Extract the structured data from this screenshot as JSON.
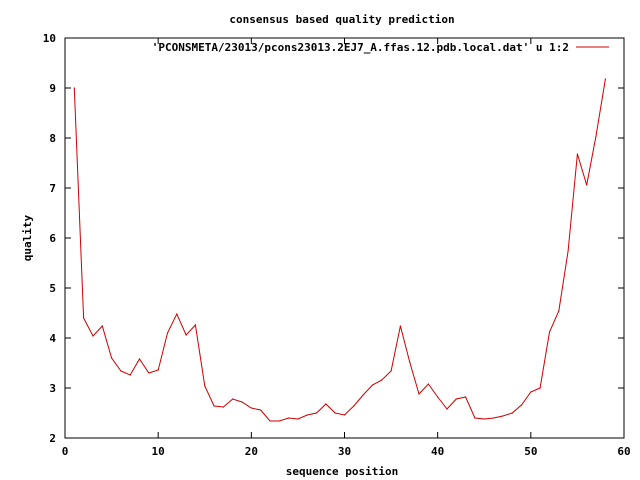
{
  "chart_data": {
    "type": "line",
    "title": "consensus based quality prediction",
    "xlabel": "sequence position",
    "ylabel": "quality",
    "xlim": [
      0,
      60
    ],
    "ylim": [
      2,
      10
    ],
    "xticks": [
      0,
      10,
      20,
      30,
      40,
      50,
      60
    ],
    "yticks": [
      2,
      3,
      4,
      5,
      6,
      7,
      8,
      9,
      10
    ],
    "grid": false,
    "legend_position": "top-right",
    "series": [
      {
        "name": "'PCONSMETA/23013/pcons23013.2EJ7_A.ffas.12.pdb.local.dat' u 1:2",
        "color": "#cc0000",
        "x": [
          1,
          2,
          3,
          4,
          5,
          6,
          7,
          8,
          9,
          10,
          11,
          12,
          13,
          14,
          15,
          16,
          17,
          18,
          19,
          20,
          21,
          22,
          23,
          24,
          25,
          26,
          27,
          28,
          29,
          30,
          31,
          32,
          33,
          34,
          35,
          36,
          37,
          38,
          39,
          40,
          41,
          42,
          43,
          44,
          45,
          46,
          47,
          48,
          49,
          50,
          51,
          52,
          53,
          54,
          55,
          56,
          57,
          58
        ],
        "y": [
          9.0,
          4.4,
          4.04,
          4.24,
          3.6,
          3.34,
          3.26,
          3.58,
          3.3,
          3.36,
          4.1,
          4.48,
          4.06,
          4.26,
          3.04,
          2.64,
          2.62,
          2.78,
          2.72,
          2.6,
          2.56,
          2.34,
          2.34,
          2.4,
          2.38,
          2.46,
          2.5,
          2.68,
          2.5,
          2.46,
          2.64,
          2.86,
          3.06,
          3.16,
          3.34,
          4.24,
          3.52,
          2.88,
          3.08,
          2.82,
          2.58,
          2.78,
          2.82,
          2.4,
          2.38,
          2.4,
          2.44,
          2.5,
          2.66,
          2.92,
          3.0,
          4.12,
          4.54,
          5.74,
          7.68,
          7.06,
          8.04,
          9.18
        ]
      }
    ]
  }
}
